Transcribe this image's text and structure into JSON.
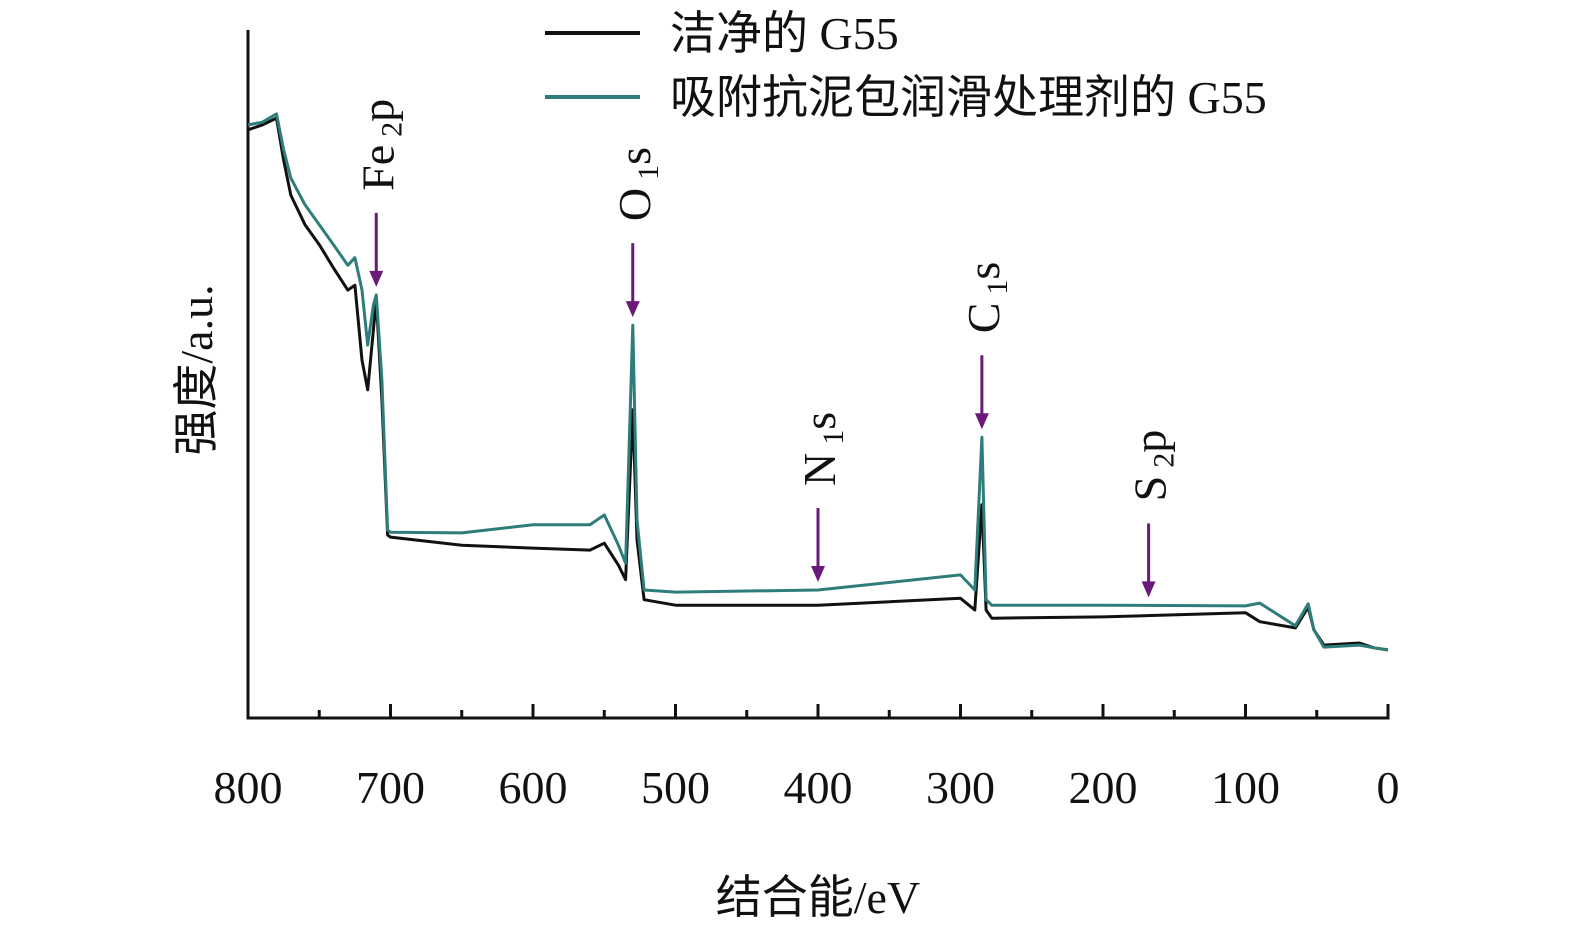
{
  "chart_data": {
    "type": "line",
    "xlabel": "结合能/eV",
    "ylabel": "强度/a.u.",
    "x": [
      800,
      790,
      780,
      775,
      770,
      760,
      750,
      740,
      730,
      725,
      720,
      716,
      712,
      710,
      706,
      702,
      700,
      650,
      600,
      560,
      550,
      540,
      535,
      530,
      527,
      522,
      500,
      400,
      300,
      290,
      285,
      282,
      278,
      200,
      100,
      90,
      65,
      56,
      52,
      45,
      20,
      10,
      0
    ],
    "series": [
      {
        "name": "洁净的 G55",
        "color": "#111111",
        "values": [
          85.5,
          86.2,
          87.2,
          81.1,
          76.0,
          71.7,
          68.8,
          65.4,
          62.2,
          62.9,
          52.0,
          47.7,
          56.4,
          60.8,
          46.2,
          26.6,
          26.3,
          25.1,
          24.7,
          24.4,
          25.4,
          22.2,
          20.1,
          44.8,
          25.9,
          17.2,
          16.4,
          16.4,
          17.4,
          15.7,
          31.0,
          15.7,
          14.5,
          14.7,
          15.3,
          14.0,
          13.1,
          16.1,
          12.8,
          10.6,
          10.9,
          10.2,
          9.9
        ]
      },
      {
        "name": "吸附抗泥包润滑处理剂的 G55",
        "color": "#2e7d7a",
        "values": [
          86.2,
          86.6,
          87.8,
          82.6,
          78.5,
          74.6,
          71.7,
          68.8,
          65.8,
          66.9,
          62.2,
          54.2,
          60.0,
          61.5,
          49.1,
          27.3,
          27.0,
          26.9,
          28.1,
          28.1,
          29.5,
          25.1,
          22.5,
          57.1,
          28.8,
          18.6,
          18.3,
          18.6,
          20.8,
          18.6,
          40.8,
          17.2,
          16.4,
          16.4,
          16.3,
          16.7,
          13.4,
          16.6,
          12.8,
          10.3,
          10.6,
          10.2,
          9.9
        ]
      }
    ],
    "xlim": [
      800,
      0
    ],
    "xticks": [
      800,
      700,
      600,
      500,
      400,
      300,
      200,
      100,
      0
    ],
    "xminorticks": [
      750,
      650,
      550,
      450,
      350,
      250,
      150,
      50
    ],
    "ylim": [
      0,
      100
    ],
    "annotations": [
      {
        "x": 710,
        "label": [
          "Fe",
          "2",
          "p"
        ]
      },
      {
        "x": 530,
        "label": [
          "O",
          "1",
          "s"
        ]
      },
      {
        "x": 400,
        "label": [
          "N",
          "1",
          "s"
        ]
      },
      {
        "x": 285,
        "label": [
          "C",
          "1",
          "s"
        ]
      },
      {
        "x": 168,
        "label": [
          "S",
          "2",
          "p"
        ]
      }
    ],
    "arrow_color": "#6a1b7a",
    "legend": "top"
  }
}
